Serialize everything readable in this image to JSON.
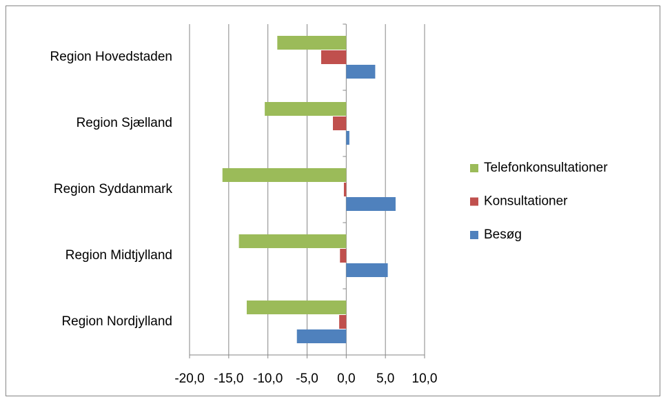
{
  "chart_data": {
    "type": "bar",
    "orientation": "horizontal",
    "categories": [
      "Region Hovedstaden",
      "Region Sjælland",
      "Region Syddanmark",
      "Region Midtjylland",
      "Region Nordjylland"
    ],
    "series": [
      {
        "name": "Telefonkonsultationer",
        "color": "#9bbb59",
        "values": [
          -8.8,
          -10.4,
          -15.8,
          -13.7,
          -12.7
        ]
      },
      {
        "name": "Konsultationer",
        "color": "#c0504d",
        "values": [
          -3.2,
          -1.7,
          -0.3,
          -0.8,
          -0.9
        ]
      },
      {
        "name": "Besøg",
        "color": "#4f81bd",
        "values": [
          3.7,
          0.4,
          6.3,
          5.3,
          -6.3
        ]
      }
    ],
    "xlim": [
      -20,
      10
    ],
    "xticks": [
      {
        "value": -20,
        "label": "-20,0"
      },
      {
        "value": -15,
        "label": "-15,0"
      },
      {
        "value": -10,
        "label": "-10,0"
      },
      {
        "value": -5,
        "label": "-5,0"
      },
      {
        "value": 0,
        "label": "0,0"
      },
      {
        "value": 5,
        "label": "5,0"
      },
      {
        "value": 10,
        "label": "10,0"
      }
    ],
    "grid": true,
    "legend": "right"
  }
}
